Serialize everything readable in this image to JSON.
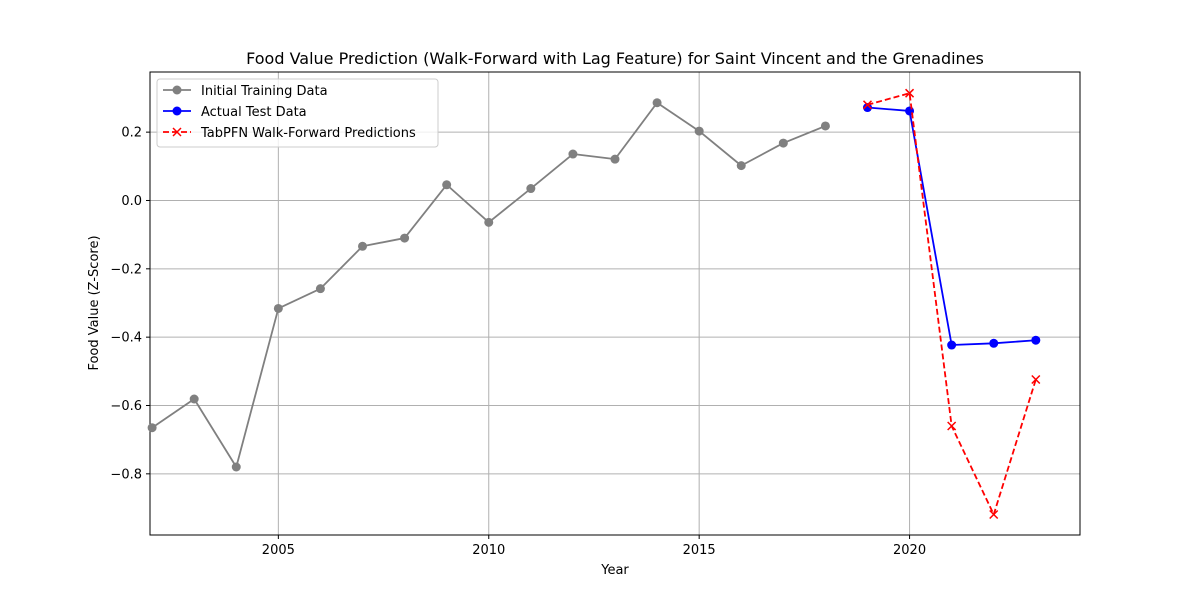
{
  "chart_data": {
    "type": "line",
    "title": "Food Value Prediction (Walk-Forward with Lag Feature) for Saint Vincent and the Grenadines",
    "xlabel": "Year",
    "ylabel": "Food Value (Z-Score)",
    "xlim": [
      2001.95,
      2024.05
    ],
    "ylim": [
      -0.979,
      0.376
    ],
    "xticks": [
      2005,
      2010,
      2015,
      2020
    ],
    "yticks": [
      -0.8,
      -0.6,
      -0.4,
      -0.2,
      0.0,
      0.2
    ],
    "grid": true,
    "legend_position": "top-left",
    "series": [
      {
        "name": "Initial Training Data",
        "color": "#808080",
        "marker": "circle",
        "line_style": "solid",
        "points": [
          [
            2002,
            -0.665
          ],
          [
            2003,
            -0.581
          ],
          [
            2004,
            -0.78
          ],
          [
            2005,
            -0.316
          ],
          [
            2006,
            -0.258
          ],
          [
            2007,
            -0.134
          ],
          [
            2008,
            -0.11
          ],
          [
            2009,
            0.046
          ],
          [
            2010,
            -0.064
          ],
          [
            2011,
            0.035
          ],
          [
            2012,
            0.136
          ],
          [
            2013,
            0.121
          ],
          [
            2014,
            0.286
          ],
          [
            2015,
            0.203
          ],
          [
            2016,
            0.102
          ],
          [
            2017,
            0.168
          ],
          [
            2018,
            0.218
          ]
        ]
      },
      {
        "name": "Actual Test Data",
        "color": "#0000ff",
        "marker": "circle",
        "line_style": "solid",
        "points": [
          [
            2019,
            0.272
          ],
          [
            2020,
            0.262
          ],
          [
            2021,
            -0.423
          ],
          [
            2022,
            -0.418
          ],
          [
            2023,
            -0.409
          ]
        ]
      },
      {
        "name": "TabPFN Walk-Forward Predictions",
        "color": "#ff0000",
        "marker": "x",
        "line_style": "dashed",
        "points": [
          [
            2019,
            0.28
          ],
          [
            2020,
            0.314
          ],
          [
            2021,
            -0.66
          ],
          [
            2022,
            -0.919
          ],
          [
            2023,
            -0.524
          ]
        ]
      }
    ]
  }
}
